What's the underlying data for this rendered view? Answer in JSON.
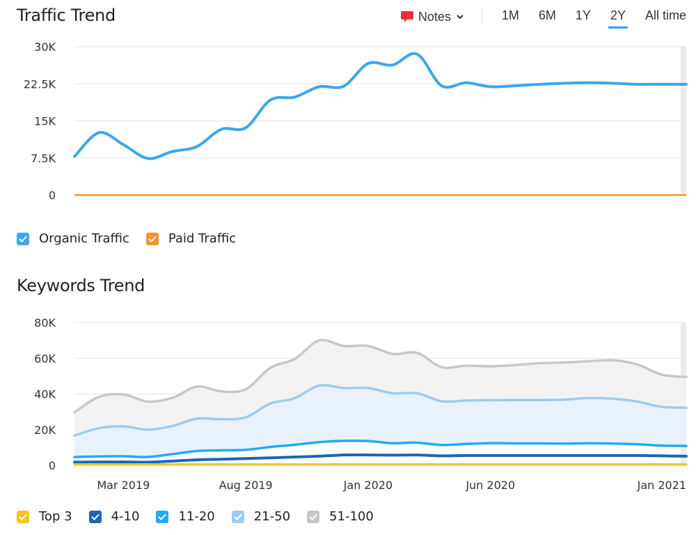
{
  "traffic_section": {
    "title": "Traffic Trend"
  },
  "toolbar": {
    "notes_label": "Notes",
    "ranges": [
      "1M",
      "6M",
      "1Y",
      "2Y",
      "All time"
    ],
    "active_range": "2Y"
  },
  "keywords_section": {
    "title": "Keywords Trend"
  },
  "colors": {
    "organic": "#3aa7ee",
    "paid": "#f7922d",
    "top3": "#f5c22b",
    "pos_4_10": "#1a66b6",
    "pos_11_20": "#26aaf0",
    "pos_21_50": "#9ecbf0",
    "pos_51_100": "#c7c7c7",
    "notes_icon": "#e8303a",
    "active_tab": "#2f9ff5"
  },
  "chart_data": [
    {
      "type": "line",
      "title": "Traffic Trend",
      "yticks": [
        "30K",
        "22.5K",
        "15K",
        "7.5K",
        "0"
      ],
      "ylim": [
        0,
        30000
      ],
      "grid": true,
      "legend_position": "bottom-left",
      "x": [
        "Jan 2019",
        "Feb 2019",
        "Mar 2019",
        "Apr 2019",
        "May 2019",
        "Jun 2019",
        "Jul 2019",
        "Aug 2019",
        "Sep 2019",
        "Oct 2019",
        "Nov 2019",
        "Dec 2019",
        "Jan 2020",
        "Feb 2020",
        "Mar 2020",
        "Apr 2020",
        "May 2020",
        "Jun 2020",
        "Jul 2020",
        "Aug 2020",
        "Sep 2020",
        "Oct 2020",
        "Nov 2020",
        "Dec 2020",
        "Jan 2021",
        "Feb 2021"
      ],
      "series": [
        {
          "name": "Organic Traffic",
          "values": [
            7800,
            12600,
            10200,
            7400,
            8800,
            9800,
            13300,
            13600,
            19200,
            19800,
            21900,
            22000,
            26600,
            26300,
            28500,
            22100,
            22700,
            21900,
            22100,
            22400,
            22600,
            22700,
            22600,
            22400,
            22400,
            22400
          ]
        },
        {
          "name": "Paid Traffic",
          "values": [
            0,
            0,
            0,
            0,
            0,
            0,
            0,
            0,
            0,
            0,
            0,
            0,
            0,
            0,
            0,
            0,
            0,
            0,
            0,
            0,
            0,
            0,
            0,
            0,
            0,
            0
          ]
        }
      ]
    },
    {
      "type": "area",
      "title": "Keywords Trend",
      "yticks": [
        "80K",
        "60K",
        "40K",
        "20K",
        "0"
      ],
      "ylim": [
        0,
        80000
      ],
      "grid": true,
      "legend_position": "bottom-left",
      "xtick_labels": [
        "Mar 2019",
        "Aug 2019",
        "Jan 2020",
        "Jun 2020",
        "Jan 2021"
      ],
      "x": [
        "Jan 2019",
        "Feb 2019",
        "Mar 2019",
        "Apr 2019",
        "May 2019",
        "Jun 2019",
        "Jul 2019",
        "Aug 2019",
        "Sep 2019",
        "Oct 2019",
        "Nov 2019",
        "Dec 2019",
        "Jan 2020",
        "Feb 2020",
        "Mar 2020",
        "Apr 2020",
        "May 2020",
        "Jun 2020",
        "Jul 2020",
        "Aug 2020",
        "Sep 2020",
        "Oct 2020",
        "Nov 2020",
        "Dec 2020",
        "Jan 2021",
        "Feb 2021"
      ],
      "stacked": true,
      "series": [
        {
          "name": "Top 3",
          "values": [
            500,
            500,
            500,
            500,
            500,
            500,
            500,
            500,
            500,
            500,
            500,
            500,
            500,
            500,
            500,
            500,
            500,
            500,
            500,
            500,
            500,
            500,
            500,
            500,
            500,
            500
          ]
        },
        {
          "name": "4-10",
          "values": [
            1300,
            1400,
            1400,
            1300,
            1900,
            2600,
            2900,
            3300,
            3700,
            4200,
            4600,
            5300,
            5300,
            5200,
            5300,
            4800,
            5000,
            5000,
            5000,
            5000,
            5000,
            5000,
            5000,
            5000,
            4800,
            4600
          ]
        },
        {
          "name": "11-20",
          "values": [
            2800,
            3100,
            3200,
            2900,
            3900,
            4900,
            5000,
            4900,
            6100,
            6800,
            7900,
            7900,
            7800,
            6700,
            6900,
            6100,
            6500,
            6900,
            6800,
            6800,
            6700,
            6900,
            6700,
            6300,
            5800,
            5800
          ]
        },
        {
          "name": "21-50",
          "values": [
            12100,
            15800,
            16700,
            15300,
            15700,
            18200,
            17400,
            18200,
            24300,
            26100,
            31700,
            29600,
            29700,
            28000,
            27700,
            24500,
            24300,
            24100,
            24300,
            24300,
            24600,
            25300,
            25100,
            23900,
            21700,
            21400
          ]
        },
        {
          "name": "51-100",
          "values": [
            13000,
            17600,
            17900,
            15700,
            15800,
            17900,
            15700,
            15700,
            20000,
            22000,
            25300,
            23600,
            23600,
            22000,
            22600,
            19100,
            19500,
            19000,
            19600,
            20600,
            20800,
            20600,
            21600,
            20800,
            18000,
            17200
          ]
        }
      ]
    }
  ]
}
